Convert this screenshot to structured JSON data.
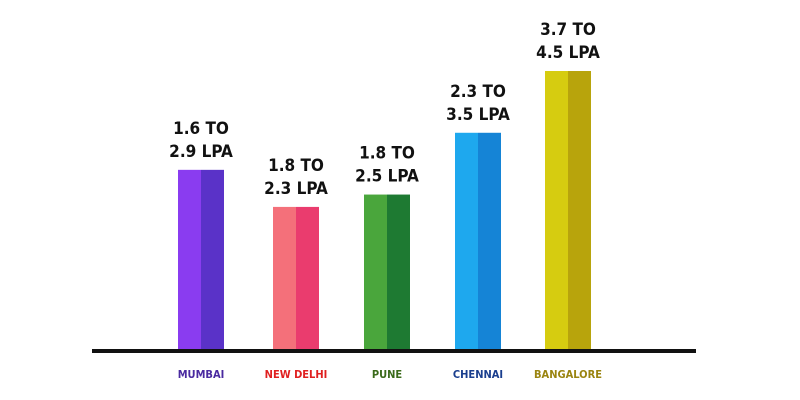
{
  "chart_data": {
    "type": "bar",
    "title": "",
    "xlabel": "",
    "ylabel": "",
    "categories": [
      "MUMBAI",
      "NEW DELHI",
      "PUNE",
      "CHENNAI",
      "BANGALORE"
    ],
    "series": [
      {
        "values": [
          2.9,
          2.3,
          2.5,
          3.5,
          4.5
        ]
      }
    ],
    "ranges": [
      [
        1.6,
        2.9
      ],
      [
        1.8,
        2.3
      ],
      [
        1.8,
        2.5
      ],
      [
        2.3,
        3.5
      ],
      [
        3.7,
        4.5
      ]
    ],
    "data_labels": [
      [
        "1.6 TO",
        "2.9 LPA"
      ],
      [
        "1.8 TO",
        "2.3 LPA"
      ],
      [
        "1.8 TO",
        "2.5 LPA"
      ],
      [
        "2.3 TO",
        "3.5 LPA"
      ],
      [
        "3.7 TO",
        "4.5 LPA"
      ]
    ],
    "colors": [
      {
        "light": "#8a3cf0",
        "dark": "#5a32c8",
        "label": "#4a2aa0"
      },
      {
        "light": "#f4707a",
        "dark": "#ea3c6e",
        "label": "#e02020"
      },
      {
        "light": "#4aa63c",
        "dark": "#1e7a32",
        "label": "#3a6a1a"
      },
      {
        "light": "#1ea8ee",
        "dark": "#1584d6",
        "label": "#1a3e8e"
      },
      {
        "light": "#d6cc10",
        "dark": "#b8a40c",
        "label": "#9a8410"
      }
    ],
    "ylim": [
      0,
      4.5
    ],
    "grid": false,
    "legend": "none"
  }
}
